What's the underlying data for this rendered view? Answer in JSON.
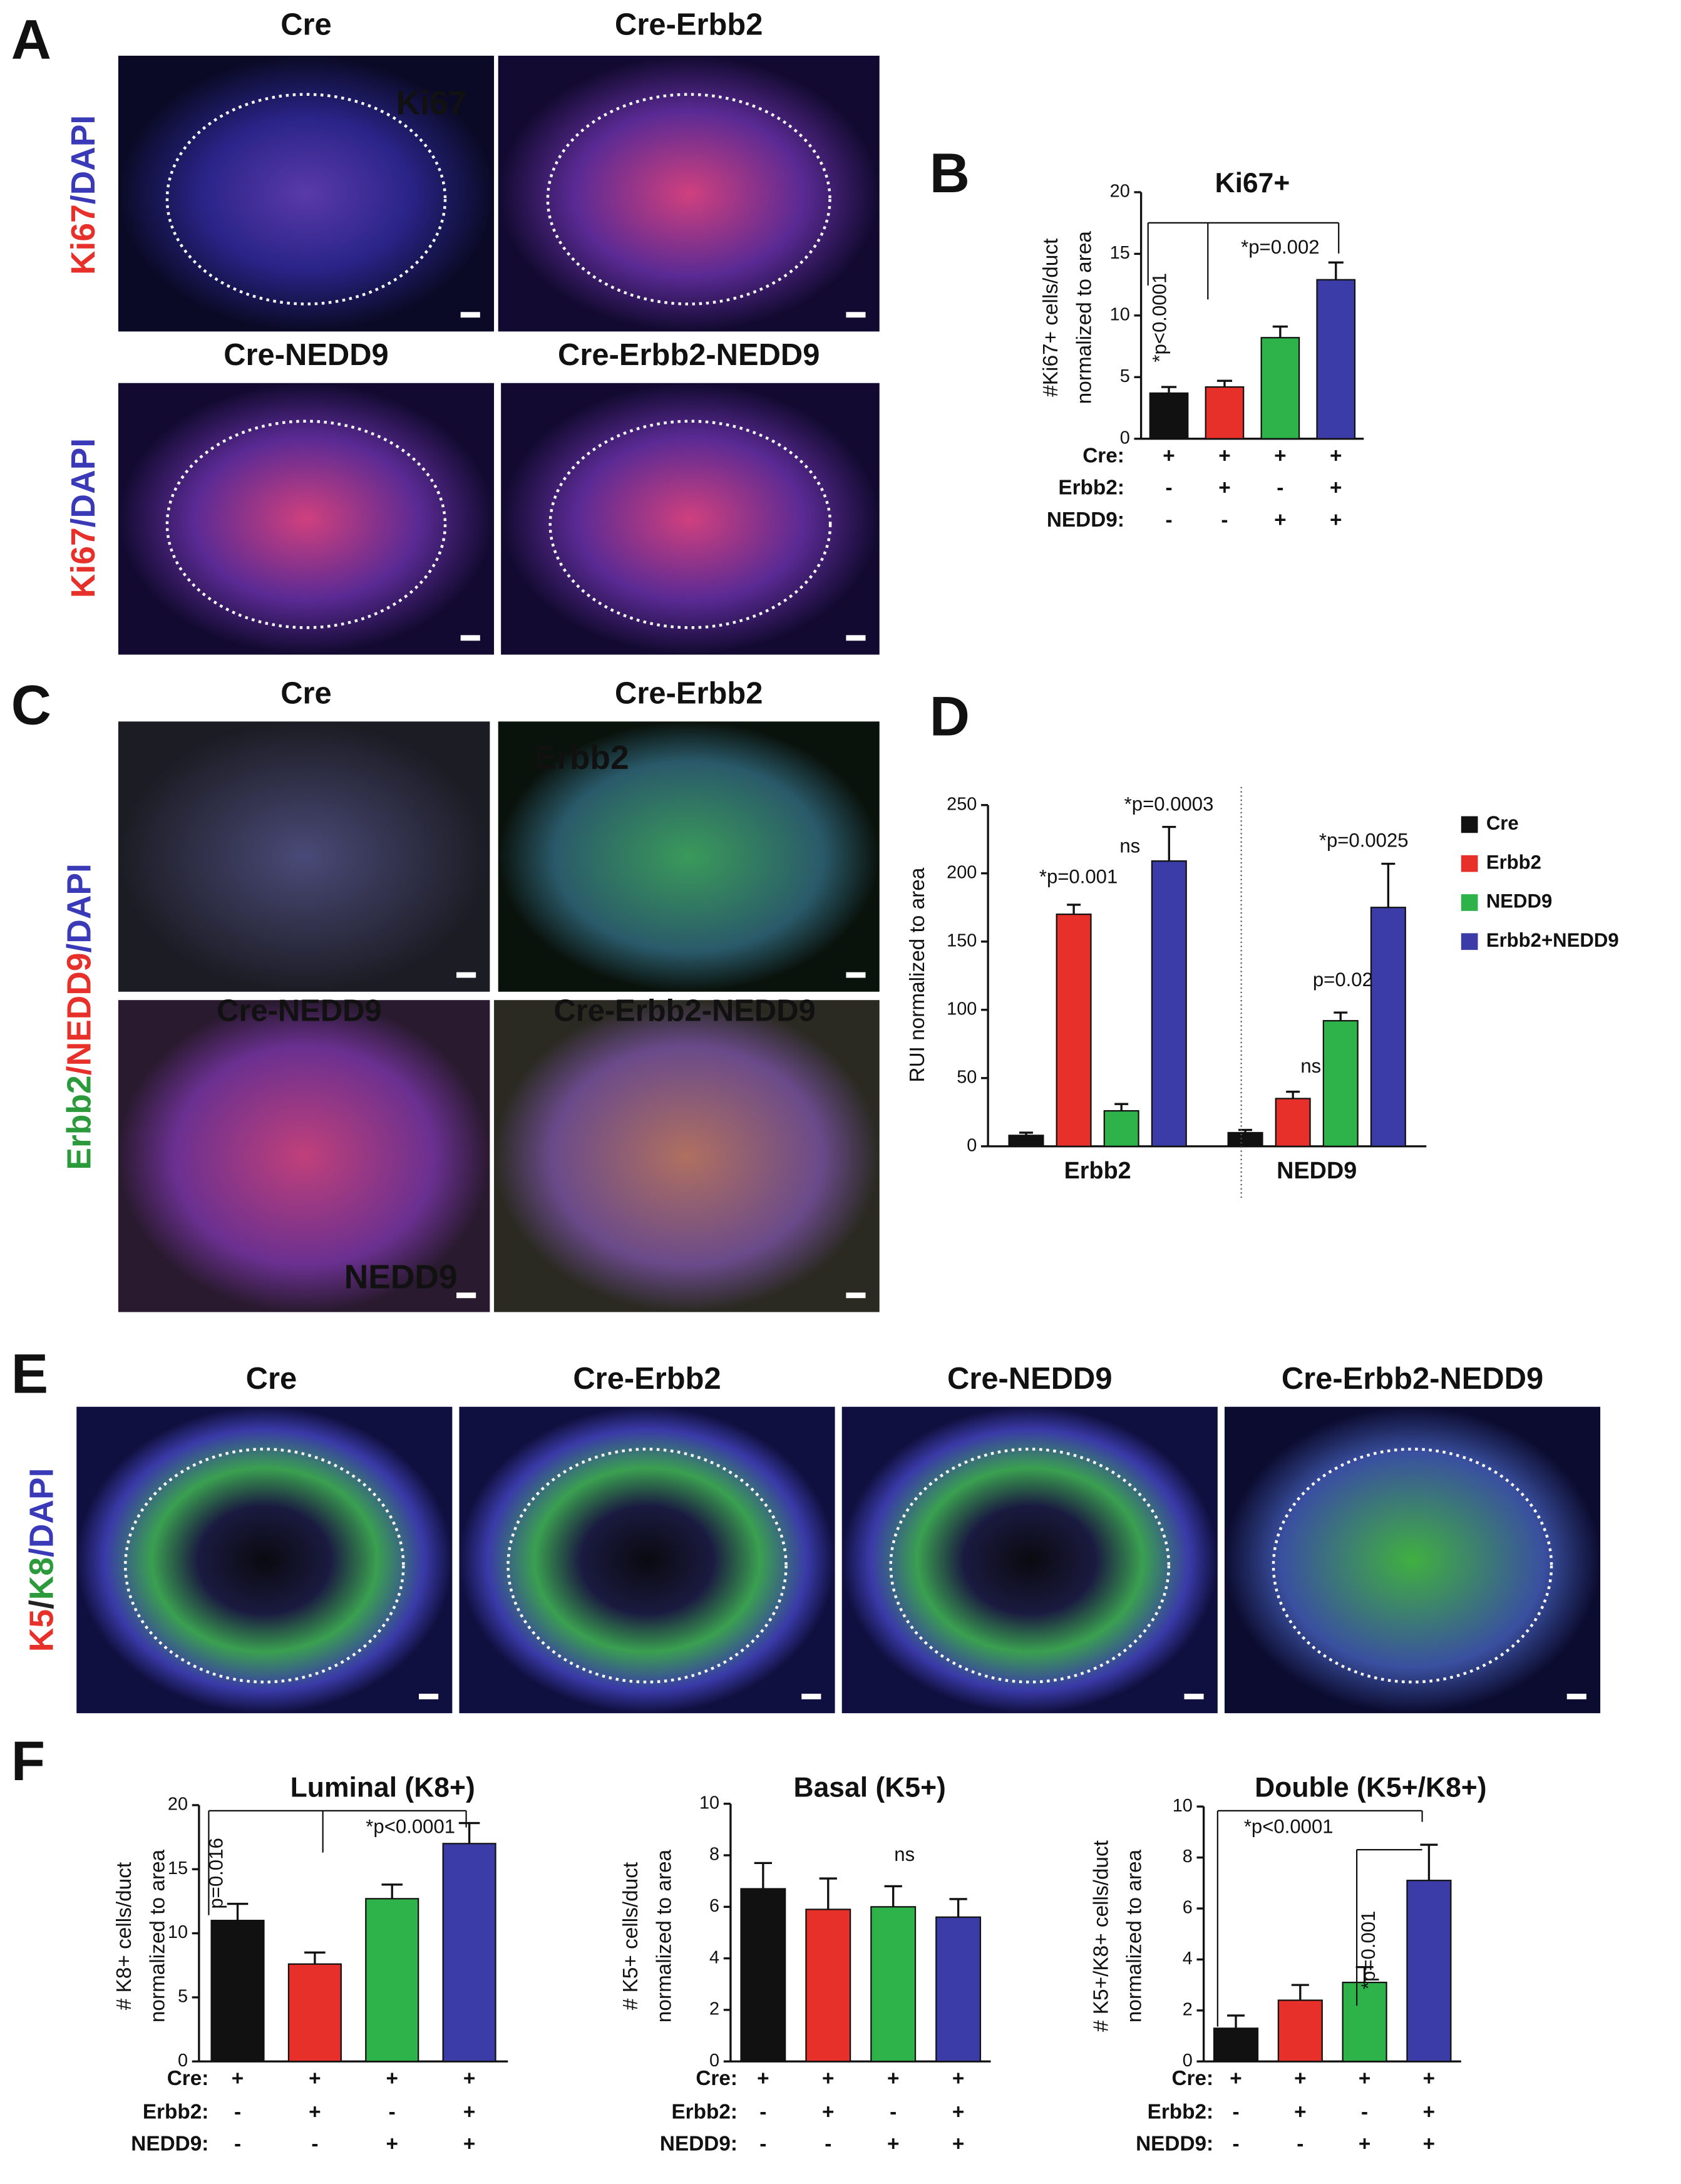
{
  "figure": {
    "panels": {
      "A": {
        "letter": "A",
        "titles": [
          "Cre",
          "Cre-Erbb2",
          "Cre-NEDD9",
          "Cre-Erbb2-NEDD9"
        ],
        "stain_label": [
          "Ki67",
          "/DAPI"
        ],
        "overlay": "Ki67"
      },
      "C": {
        "letter": "C",
        "titles": [
          "Cre",
          "Cre-Erbb2",
          "Cre-NEDD9",
          "Cre-Erbb2-NEDD9"
        ],
        "stain_label": [
          "Erbb2",
          "/NEDD9",
          "/DAPI"
        ],
        "overlays": [
          "Erbb2",
          "NEDD9"
        ]
      },
      "E": {
        "letter": "E",
        "titles": [
          "Cre",
          "Cre-Erbb2",
          "Cre-NEDD9",
          "Cre-Erbb2-NEDD9"
        ],
        "stain_label": [
          "K5",
          "/",
          "K8",
          "/DAPI"
        ]
      }
    },
    "chart_letters": [
      "B",
      "D",
      "F"
    ]
  },
  "chart_data": [
    {
      "type": "bar",
      "title": "Ki67+",
      "y_label": [
        "#Ki67+ cells/duct",
        "normalized to area"
      ],
      "ylim": [
        0,
        20
      ],
      "yticks": [
        0,
        5,
        10,
        15,
        20
      ],
      "values": [
        3.7,
        4.2,
        8.2,
        12.9
      ],
      "errors": [
        0.5,
        0.5,
        0.9,
        1.4
      ],
      "colors": [
        "#111111",
        "#e8302a",
        "#2db34a",
        "#3c3ca8"
      ],
      "conditions": [
        {
          "label": "Cre:",
          "signs": [
            "+",
            "+",
            "+",
            "+"
          ]
        },
        {
          "label": "Erbb2:",
          "signs": [
            "-",
            "+",
            "-",
            "+"
          ]
        },
        {
          "label": "NEDD9:",
          "signs": [
            "-",
            "-",
            "+",
            "+"
          ]
        }
      ],
      "annotations": [
        "*p<0.0001",
        "*p=0.002"
      ]
    },
    {
      "type": "bar",
      "y_label": [
        "RUI normalized to area"
      ],
      "ylim": [
        0,
        250
      ],
      "yticks": [
        0,
        50,
        100,
        150,
        200,
        250
      ],
      "categories": [
        "Erbb2",
        "NEDD9"
      ],
      "series": [
        {
          "name": "Cre",
          "color": "#111111",
          "values": [
            8,
            10
          ],
          "errors": [
            2,
            2
          ]
        },
        {
          "name": "Erbb2",
          "color": "#e8302a",
          "values": [
            170,
            35
          ],
          "errors": [
            7,
            5
          ]
        },
        {
          "name": "NEDD9",
          "color": "#2db34a",
          "values": [
            26,
            92
          ],
          "errors": [
            5,
            6
          ]
        },
        {
          "name": "Erbb2+NEDD9",
          "color": "#3c3ca8",
          "values": [
            209,
            175
          ],
          "errors": [
            25,
            32
          ]
        }
      ],
      "legend": "right",
      "annotations": [
        "*p=0.001",
        "ns",
        "*p=0.0003",
        "ns",
        "p=0.02",
        "*p=0.0025"
      ]
    },
    {
      "type": "bar",
      "title": "Luminal (K8+)",
      "y_label": [
        "# K8+ cells/duct",
        "normalized to area"
      ],
      "ylim": [
        0,
        20
      ],
      "yticks": [
        0,
        5,
        10,
        15,
        20
      ],
      "values": [
        11,
        7.6,
        12.7,
        17
      ],
      "errors": [
        1.3,
        0.9,
        1.1,
        1.6
      ],
      "colors": [
        "#111111",
        "#e8302a",
        "#2db34a",
        "#3c3ca8"
      ],
      "conditions": [
        {
          "label": "Cre:",
          "signs": [
            "+",
            "+",
            "+",
            "+"
          ]
        },
        {
          "label": "Erbb2:",
          "signs": [
            "-",
            "+",
            "-",
            "+"
          ]
        },
        {
          "label": "NEDD9:",
          "signs": [
            "-",
            "-",
            "+",
            "+"
          ]
        }
      ],
      "annotations": [
        "p=0.016",
        "*p<0.0001"
      ]
    },
    {
      "type": "bar",
      "title": "Basal (K5+)",
      "y_label": [
        "# K5+ cells/duct",
        "normalized to area"
      ],
      "ylim": [
        0,
        10
      ],
      "yticks": [
        0,
        2,
        4,
        6,
        8,
        10
      ],
      "values": [
        6.7,
        5.9,
        6.0,
        5.6
      ],
      "errors": [
        1.0,
        1.2,
        0.8,
        0.7
      ],
      "colors": [
        "#111111",
        "#e8302a",
        "#2db34a",
        "#3c3ca8"
      ],
      "conditions": [
        {
          "label": "Cre:",
          "signs": [
            "+",
            "+",
            "+",
            "+"
          ]
        },
        {
          "label": "Erbb2:",
          "signs": [
            "-",
            "+",
            "-",
            "+"
          ]
        },
        {
          "label": "NEDD9:",
          "signs": [
            "-",
            "-",
            "+",
            "+"
          ]
        }
      ],
      "annotations": [
        "ns"
      ]
    },
    {
      "type": "bar",
      "title": "Double (K5+/K8+)",
      "y_label": [
        "# K5+/K8+ cells/duct",
        "normalized to area"
      ],
      "ylim": [
        0,
        10
      ],
      "yticks": [
        0,
        2,
        4,
        6,
        8,
        10
      ],
      "values": [
        1.3,
        2.4,
        3.1,
        7.1
      ],
      "errors": [
        0.5,
        0.6,
        0.6,
        1.4
      ],
      "colors": [
        "#111111",
        "#e8302a",
        "#2db34a",
        "#3c3ca8"
      ],
      "conditions": [
        {
          "label": "Cre:",
          "signs": [
            "+",
            "+",
            "+",
            "+"
          ]
        },
        {
          "label": "Erbb2:",
          "signs": [
            "-",
            "+",
            "-",
            "+"
          ]
        },
        {
          "label": "NEDD9:",
          "signs": [
            "-",
            "-",
            "+",
            "+"
          ]
        }
      ],
      "annotations": [
        "*p<0.0001",
        "*p=0.001"
      ]
    }
  ]
}
